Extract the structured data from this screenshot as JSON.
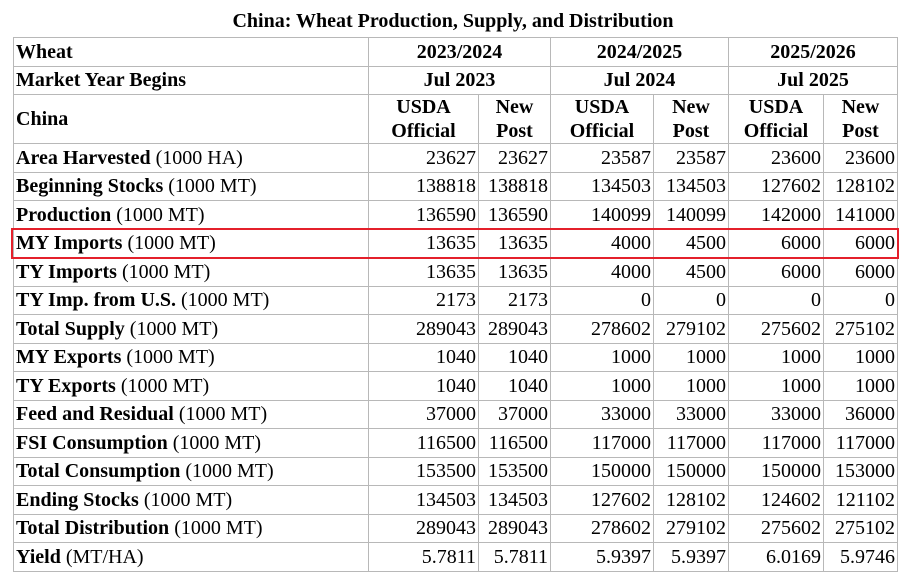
{
  "title": "China: Wheat Production, Supply, and Distribution",
  "header": {
    "row1_label": "Wheat",
    "row2_label": "Market Year Begins",
    "row3_label": "China",
    "years": [
      {
        "label": "2023/2024",
        "begins": "Jul 2023"
      },
      {
        "label": "2024/2025",
        "begins": "Jul 2024"
      },
      {
        "label": "2025/2026",
        "begins": "Jul 2025"
      }
    ],
    "col_a_line1": "USDA",
    "col_a_line2": "Official",
    "col_b_line1": "New",
    "col_b_line2": "Post"
  },
  "rows": [
    {
      "name": "Area Harvested",
      "unit": "(1000 HA)",
      "values": [
        "23627",
        "23627",
        "23587",
        "23587",
        "23600",
        "23600"
      ]
    },
    {
      "name": "Beginning Stocks",
      "unit": "(1000 MT)",
      "values": [
        "138818",
        "138818",
        "134503",
        "134503",
        "127602",
        "128102"
      ]
    },
    {
      "name": "Production",
      "unit": "(1000 MT)",
      "values": [
        "136590",
        "136590",
        "140099",
        "140099",
        "142000",
        "141000"
      ]
    },
    {
      "name": "MY Imports",
      "unit": "(1000 MT)",
      "values": [
        "13635",
        "13635",
        "4000",
        "4500",
        "6000",
        "6000"
      ],
      "highlighted": true
    },
    {
      "name": "TY Imports",
      "unit": "(1000 MT)",
      "values": [
        "13635",
        "13635",
        "4000",
        "4500",
        "6000",
        "6000"
      ]
    },
    {
      "name": "TY Imp. from U.S.",
      "unit": "(1000 MT)",
      "values": [
        "2173",
        "2173",
        "0",
        "0",
        "0",
        "0"
      ]
    },
    {
      "name": "Total Supply",
      "unit": "(1000 MT)",
      "values": [
        "289043",
        "289043",
        "278602",
        "279102",
        "275602",
        "275102"
      ]
    },
    {
      "name": "MY Exports",
      "unit": "(1000 MT)",
      "values": [
        "1040",
        "1040",
        "1000",
        "1000",
        "1000",
        "1000"
      ]
    },
    {
      "name": "TY Exports",
      "unit": "(1000 MT)",
      "values": [
        "1040",
        "1040",
        "1000",
        "1000",
        "1000",
        "1000"
      ]
    },
    {
      "name": "Feed and Residual",
      "unit": "(1000 MT)",
      "values": [
        "37000",
        "37000",
        "33000",
        "33000",
        "33000",
        "36000"
      ]
    },
    {
      "name": "FSI Consumption",
      "unit": "(1000 MT)",
      "values": [
        "116500",
        "116500",
        "117000",
        "117000",
        "117000",
        "117000"
      ]
    },
    {
      "name": "Total Consumption",
      "unit": "(1000 MT)",
      "values": [
        "153500",
        "153500",
        "150000",
        "150000",
        "150000",
        "153000"
      ]
    },
    {
      "name": "Ending Stocks",
      "unit": "(1000 MT)",
      "values": [
        "134503",
        "134503",
        "127602",
        "128102",
        "124602",
        "121102"
      ]
    },
    {
      "name": "Total Distribution",
      "unit": "(1000 MT)",
      "values": [
        "289043",
        "289043",
        "278602",
        "279102",
        "275602",
        "275102"
      ]
    },
    {
      "name": "Yield",
      "unit": "(MT/HA)",
      "values": [
        "5.7811",
        "5.7811",
        "5.9397",
        "5.9397",
        "6.0169",
        "5.9746"
      ]
    }
  ],
  "highlight_color": "#e4202b"
}
